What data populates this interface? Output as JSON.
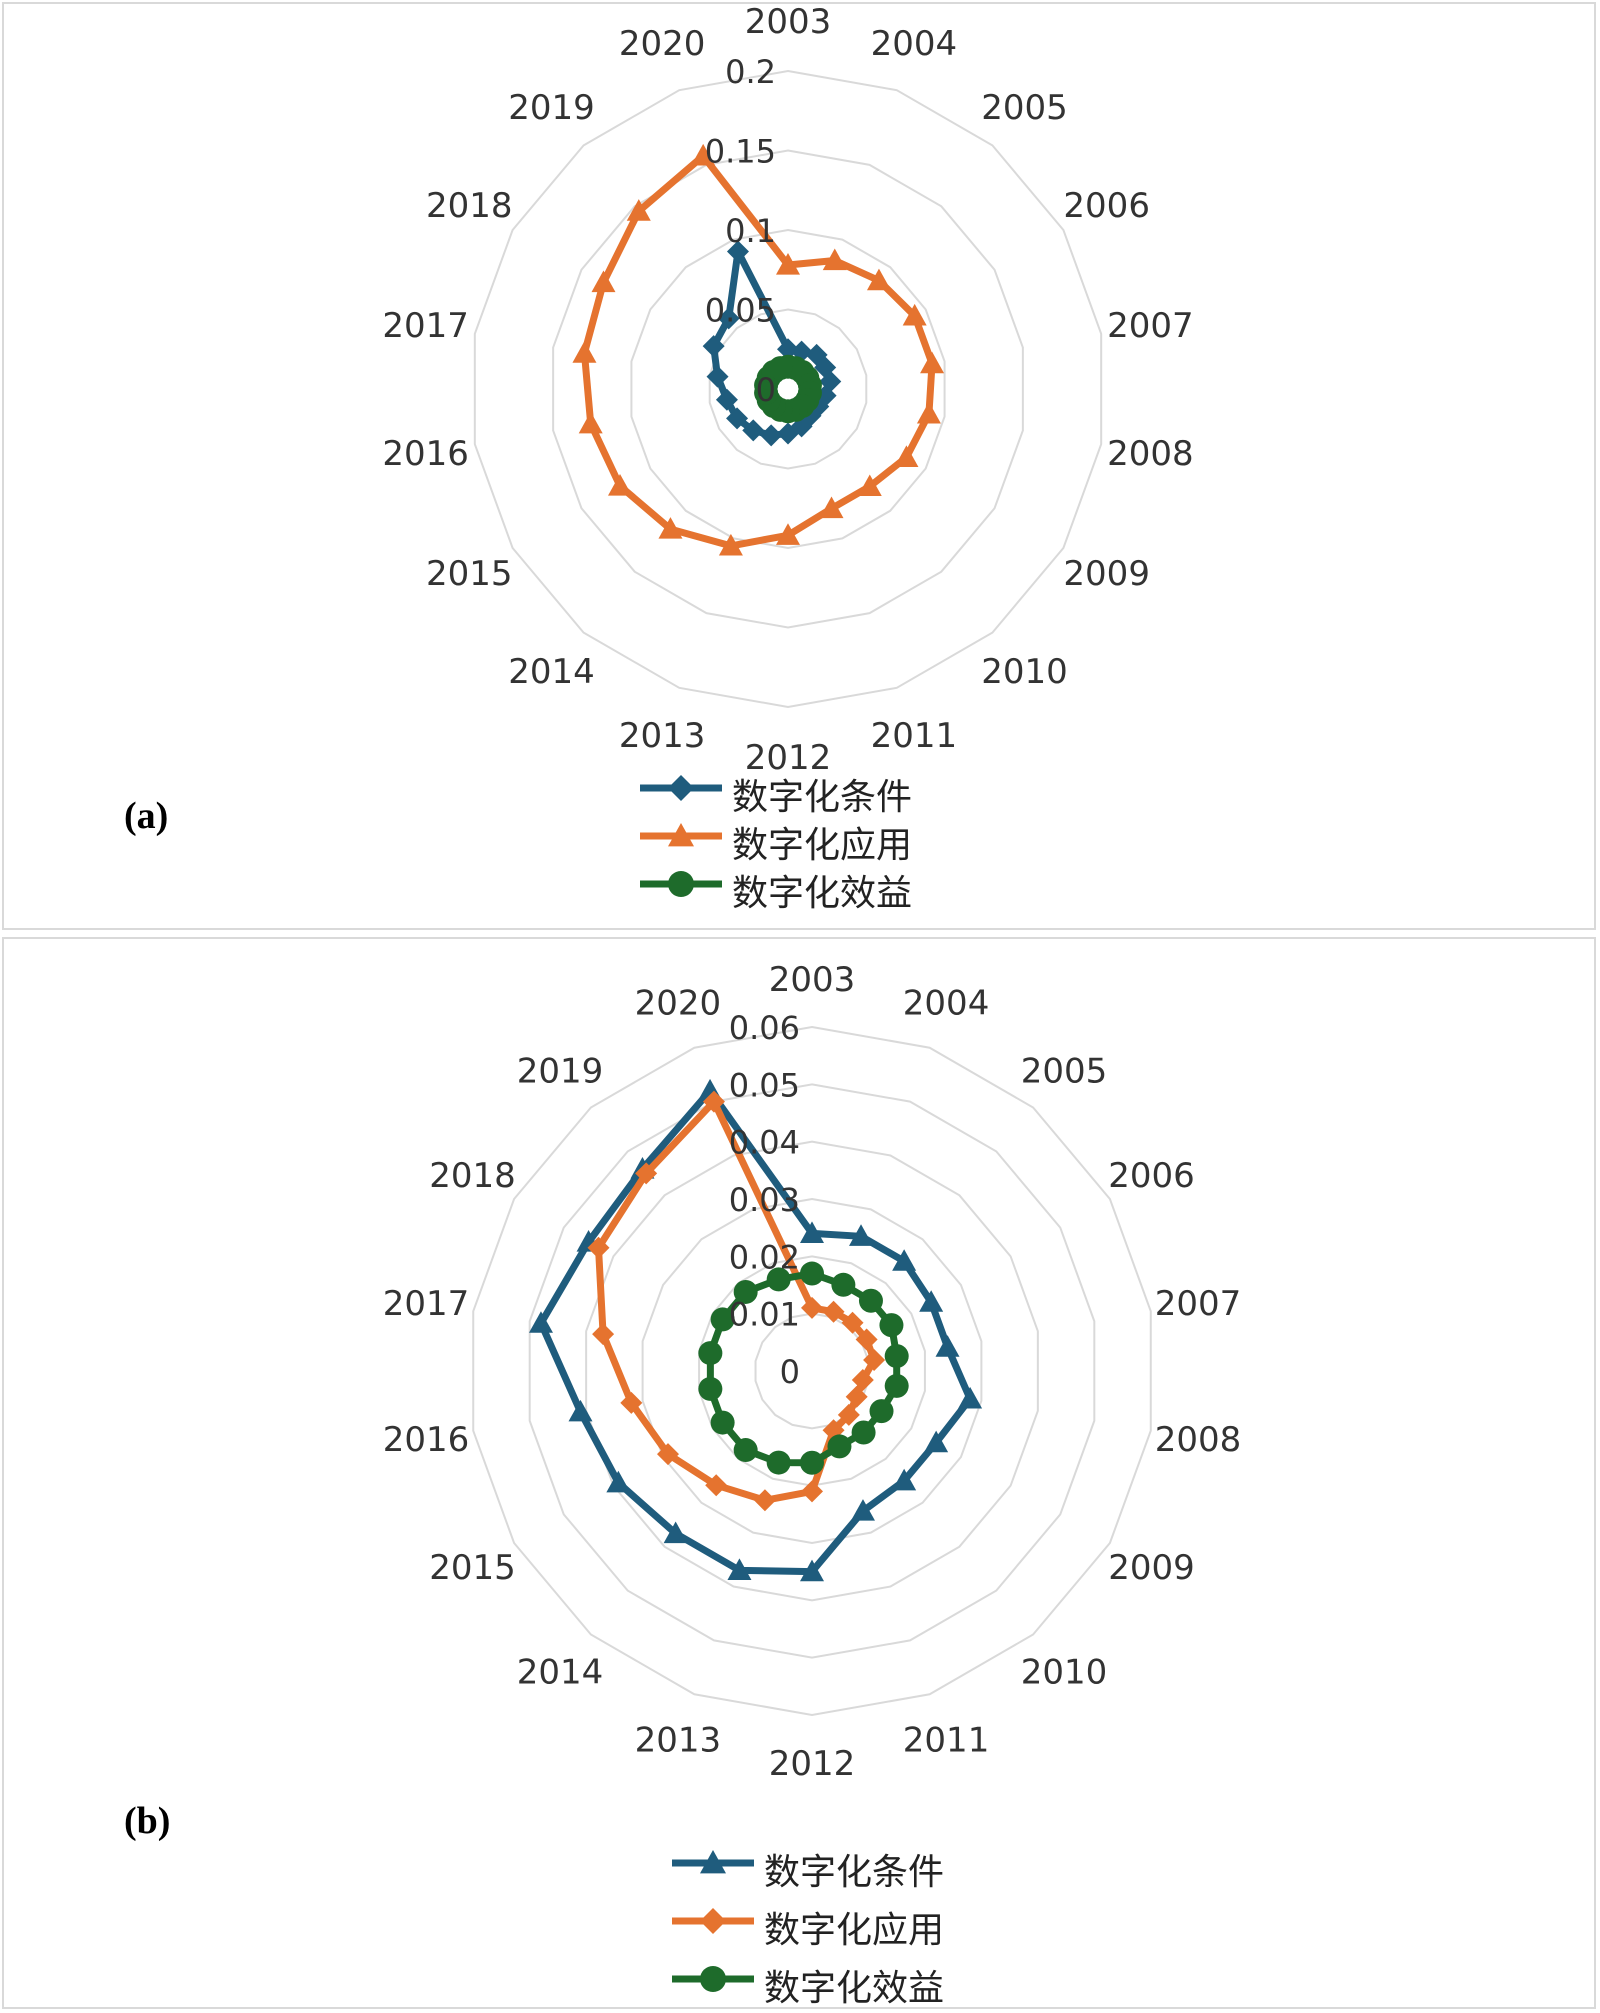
{
  "series_colors": {
    "condition": "#1f5c7d",
    "application": "#e5732f",
    "benefit": "#1e6b2b"
  },
  "chart_data": [
    {
      "type": "radar",
      "panel_label": "(a)",
      "categories": [
        "2003",
        "2004",
        "2005",
        "2006",
        "2007",
        "2008",
        "2009",
        "2010",
        "2011",
        "2012",
        "2013",
        "2014",
        "2015",
        "2016",
        "2017",
        "2018",
        "2019",
        "2020"
      ],
      "rlim": [
        0,
        0.2
      ],
      "rticks": [
        "0",
        "0.05",
        "0.1",
        "0.15",
        "0.2"
      ],
      "grid": true,
      "legend_position": "bottom",
      "series": [
        {
          "name": "数字化条件",
          "key": "condition",
          "marker": "diamond",
          "values": [
            0.025,
            0.025,
            0.028,
            0.027,
            0.027,
            0.024,
            0.022,
            0.022,
            0.025,
            0.028,
            0.031,
            0.034,
            0.037,
            0.039,
            0.045,
            0.054,
            0.058,
            0.092
          ]
        },
        {
          "name": "数字化应用",
          "key": "application",
          "marker": "triangle",
          "values": [
            0.078,
            0.086,
            0.089,
            0.092,
            0.092,
            0.09,
            0.086,
            0.08,
            0.08,
            0.092,
            0.105,
            0.115,
            0.122,
            0.126,
            0.13,
            0.134,
            0.146,
            0.156
          ]
        },
        {
          "name": "数字化效益",
          "key": "benefit",
          "marker": "circle",
          "values": [
            0.014,
            0.014,
            0.014,
            0.014,
            0.014,
            0.014,
            0.014,
            0.014,
            0.014,
            0.014,
            0.014,
            0.014,
            0.014,
            0.014,
            0.014,
            0.014,
            0.014,
            0.014
          ]
        }
      ]
    },
    {
      "type": "radar",
      "panel_label": "(b)",
      "categories": [
        "2003",
        "2004",
        "2005",
        "2006",
        "2007",
        "2008",
        "2009",
        "2010",
        "2011",
        "2012",
        "2013",
        "2014",
        "2015",
        "2016",
        "2017",
        "2018",
        "2019",
        "2020"
      ],
      "rlim": [
        0,
        0.06
      ],
      "rticks": [
        "0",
        "0.01",
        "0.02",
        "0.03",
        "0.04",
        "0.05",
        "0.06"
      ],
      "grid": true,
      "legend_position": "bottom",
      "series": [
        {
          "name": "数字化条件",
          "key": "condition",
          "marker": "triangle",
          "values": [
            0.024,
            0.025,
            0.025,
            0.024,
            0.024,
            0.028,
            0.025,
            0.025,
            0.026,
            0.035,
            0.037,
            0.037,
            0.039,
            0.041,
            0.048,
            0.045,
            0.046,
            0.052
          ]
        },
        {
          "name": "数字化应用",
          "key": "application",
          "marker": "diamond",
          "values": [
            0.011,
            0.011,
            0.011,
            0.011,
            0.011,
            0.009,
            0.009,
            0.01,
            0.011,
            0.021,
            0.024,
            0.026,
            0.029,
            0.032,
            0.037,
            0.043,
            0.045,
            0.05
          ]
        },
        {
          "name": "数字化效益",
          "key": "benefit",
          "marker": "circle",
          "values": [
            0.017,
            0.016,
            0.016,
            0.016,
            0.015,
            0.015,
            0.014,
            0.014,
            0.014,
            0.016,
            0.017,
            0.018,
            0.018,
            0.018,
            0.018,
            0.018,
            0.018,
            0.017
          ]
        }
      ]
    }
  ]
}
